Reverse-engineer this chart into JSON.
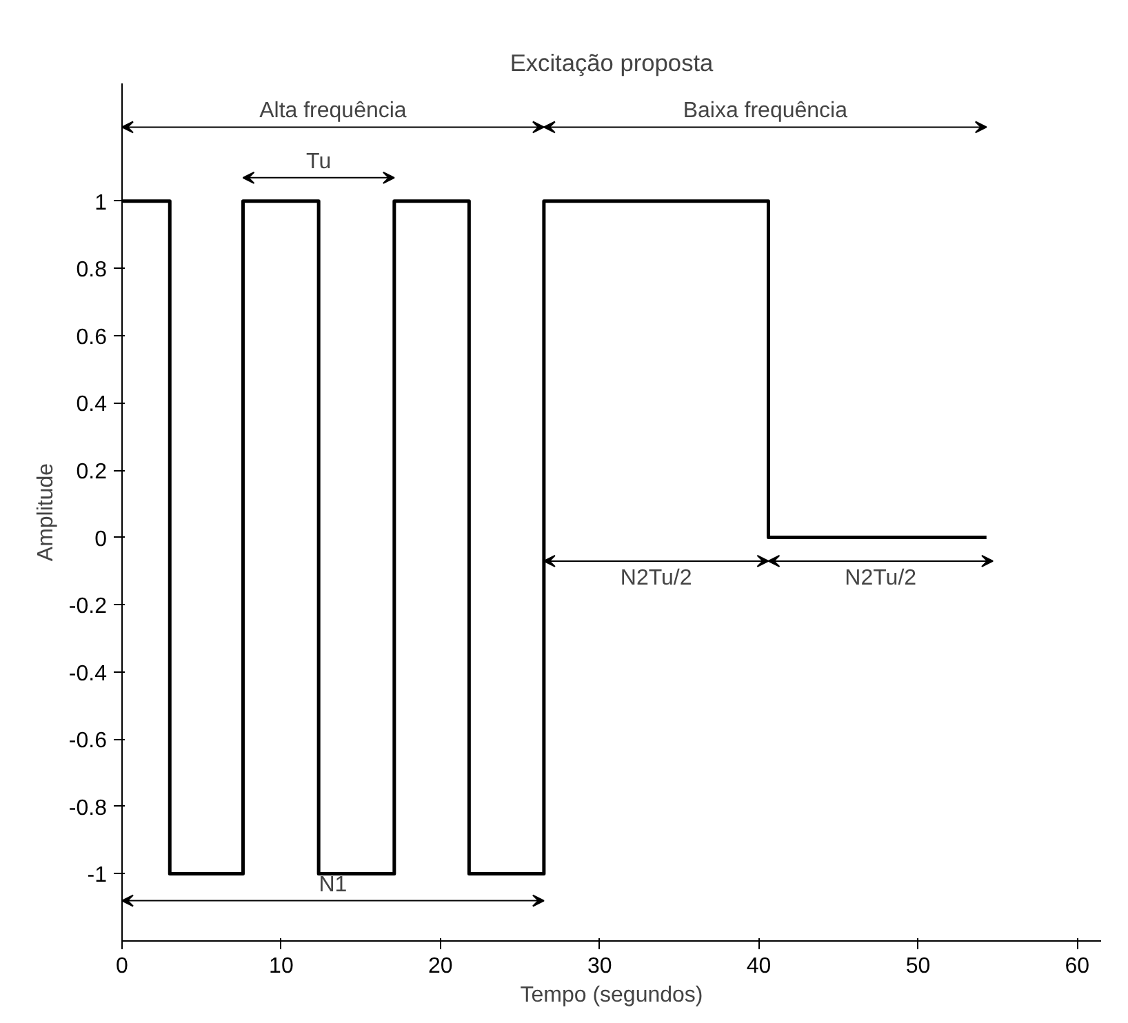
{
  "chart_data": {
    "type": "step",
    "title": "Excitação proposta",
    "xlabel": "Tempo (segundos)",
    "ylabel": "Amplitude",
    "x": [
      0,
      3,
      7.6,
      12.35,
      17.1,
      21.8,
      26.5,
      40.6,
      54.3
    ],
    "values": [
      1,
      -1,
      1,
      -1,
      1,
      -1,
      1,
      0,
      0
    ],
    "color": "#000000",
    "xlim": [
      0,
      61.5
    ],
    "ylim": [
      -1.2,
      1.35
    ],
    "xticks": [
      0,
      10,
      20,
      30,
      40,
      50,
      60
    ],
    "yticks": [
      -1,
      -0.8,
      -0.6,
      -0.4,
      -0.2,
      0,
      0.2,
      0.4,
      0.6,
      0.8,
      1
    ],
    "grid": false,
    "marker": "none",
    "line_style": "solid",
    "annotations": [
      "Alta frequência",
      "Baixa frequência",
      "Tu",
      "N1",
      "N2Tu/2",
      "N2Tu/2"
    ]
  }
}
